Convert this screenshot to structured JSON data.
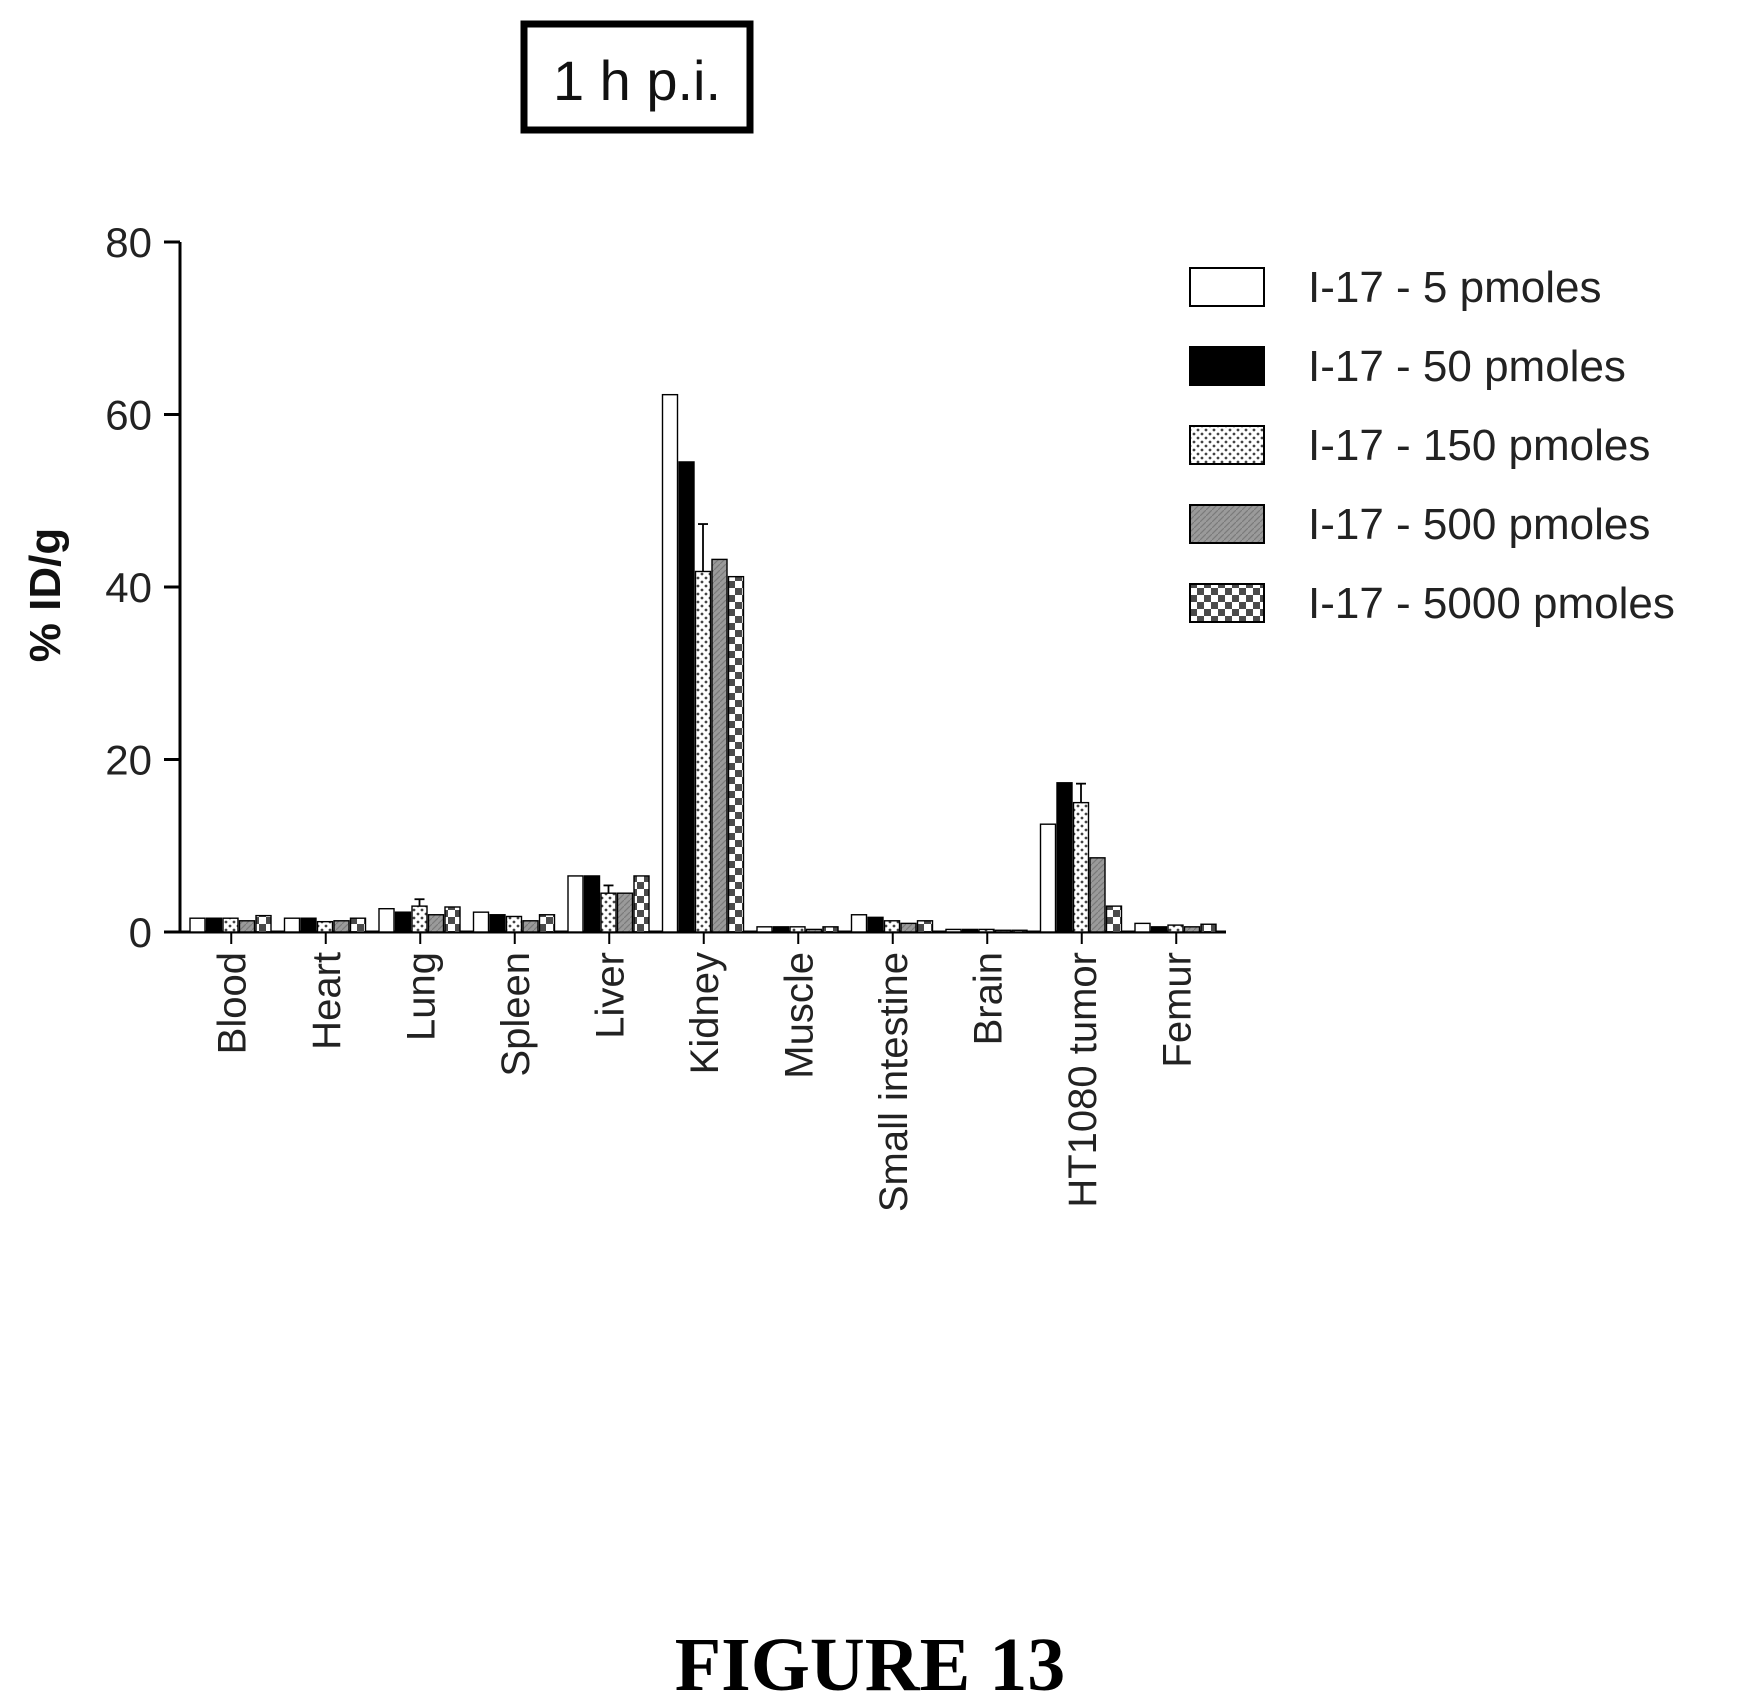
{
  "chart_data": {
    "type": "bar",
    "title": "1 h p.i.",
    "xlabel": "",
    "ylabel": "% ID/g",
    "ylim": [
      0,
      80
    ],
    "yticks": [
      0,
      20,
      40,
      60,
      80
    ],
    "grid": false,
    "legend_position": "top-right",
    "categories": [
      "Blood",
      "Heart",
      "Lung",
      "Spleen",
      "Liver",
      "Kidney",
      "Muscle",
      "Small intestine",
      "Brain",
      "HT1080 tumor",
      "Femur"
    ],
    "series": [
      {
        "name": "I-17 - 5 pmoles",
        "fill": "white",
        "values": [
          1.6,
          1.6,
          2.7,
          2.3,
          6.5,
          62.3,
          0.6,
          2.0,
          0.3,
          12.5,
          1.0
        ]
      },
      {
        "name": "I-17 - 50 pmoles",
        "fill": "black",
        "values": [
          1.6,
          1.6,
          2.3,
          2.0,
          6.5,
          54.5,
          0.6,
          1.7,
          0.3,
          17.3,
          0.6
        ]
      },
      {
        "name": "I-17 - 150 pmoles",
        "fill": "dots",
        "values": [
          1.6,
          1.2,
          3.0,
          1.8,
          4.5,
          41.8,
          0.6,
          1.3,
          0.3,
          15.0,
          0.8
        ]
      },
      {
        "name": "I-17 - 500 pmoles",
        "fill": "gray",
        "values": [
          1.3,
          1.3,
          2.0,
          1.3,
          4.5,
          43.2,
          0.3,
          1.0,
          0.2,
          8.6,
          0.6
        ]
      },
      {
        "name": "I-17 - 5000 pmoles",
        "fill": "check",
        "values": [
          1.9,
          1.6,
          2.9,
          2.0,
          6.5,
          41.2,
          0.6,
          1.3,
          0.2,
          3.0,
          0.9
        ]
      }
    ],
    "error": [
      [
        0.1,
        0.1,
        0.2,
        0.1,
        0.1,
        0.1,
        0.1,
        0.1,
        0.05,
        0.1,
        0.1
      ],
      [
        0.1,
        0.1,
        0.1,
        0.1,
        0.1,
        0.1,
        0.1,
        0.1,
        0.05,
        0.2,
        0.1
      ],
      [
        0.2,
        0.1,
        0.8,
        0.2,
        0.9,
        5.5,
        0.1,
        0.1,
        0.05,
        2.2,
        0.1
      ],
      [
        0.1,
        0.1,
        0.2,
        0.1,
        0.1,
        0.1,
        0.1,
        0.1,
        0.05,
        0.2,
        0.1
      ],
      [
        0.1,
        0.1,
        0.2,
        0.1,
        0.1,
        0.1,
        0.1,
        0.1,
        0.05,
        0.2,
        0.1
      ]
    ]
  },
  "figure_caption": "FIGURE 13"
}
